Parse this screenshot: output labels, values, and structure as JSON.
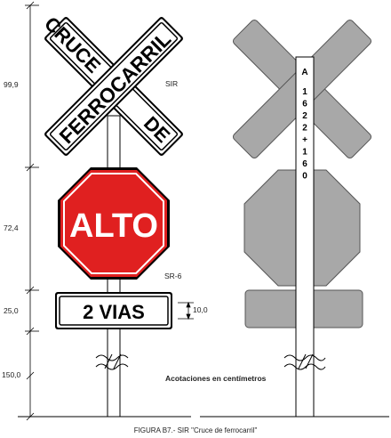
{
  "crossbuck": {
    "word_top": "CRUCE",
    "word_main": "FERROCARRIL",
    "word_bottom": "DE",
    "label": "SIR"
  },
  "stop_sign": {
    "text": "ALTO",
    "label": "SR-6",
    "color": "#e02020"
  },
  "plate": {
    "text": "2 VIAS"
  },
  "dimensions": {
    "crossbuck_height": "99,9",
    "stop_height": "72,4",
    "plate_height": "25,0",
    "post_height": "150,0",
    "plate_text_height": "10,0"
  },
  "back_view": {
    "post_label": [
      "A",
      "1",
      "6",
      "2",
      "2",
      "+",
      "1",
      "6",
      "0"
    ],
    "sign_color": "#a8a8a8"
  },
  "notes": {
    "units": "Acotaciones en centímetros",
    "caption": "FIGURA B7.-  SIR \"Cruce de ferrocarril\""
  }
}
